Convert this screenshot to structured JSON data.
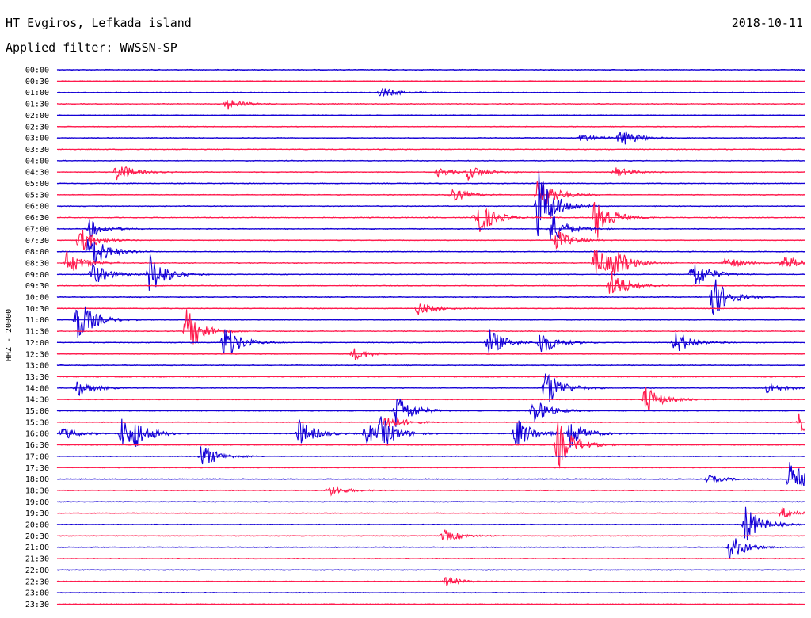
{
  "header": {
    "station": "HT Evgiros, Lefkada island",
    "date": "2018-10-11",
    "filter": "Applied filter: WWSSN-SP"
  },
  "colors": {
    "odd_trace": "#1400d6",
    "even_trace": "#ff1a4d"
  },
  "chart_data": {
    "type": "line",
    "title": "HT Evgiros, Lefkada island",
    "ylabel": "HHZ - 20000",
    "row_labels": [
      "00:00",
      "00:30",
      "01:00",
      "01:30",
      "02:00",
      "02:30",
      "03:00",
      "03:30",
      "04:00",
      "04:30",
      "05:00",
      "05:30",
      "06:00",
      "06:30",
      "07:00",
      "07:30",
      "08:00",
      "08:30",
      "09:00",
      "09:30",
      "10:00",
      "10:30",
      "11:00",
      "11:30",
      "12:00",
      "12:30",
      "13:00",
      "13:30",
      "14:00",
      "14:30",
      "15:00",
      "15:30",
      "16:00",
      "16:30",
      "17:00",
      "17:30",
      "18:00",
      "18:30",
      "19:00",
      "19:30",
      "20:00",
      "20:30",
      "21:00",
      "21:30",
      "22:00",
      "22:30",
      "23:00",
      "23:30"
    ],
    "row_minutes": 30,
    "x_range_minutes": [
      0,
      30
    ],
    "grid": false,
    "events": [
      {
        "row": 2,
        "t": 13.0,
        "amp": 0.5
      },
      {
        "row": 3,
        "t": 6.8,
        "amp": 0.55
      },
      {
        "row": 6,
        "t": 22.6,
        "amp": 0.9
      },
      {
        "row": 6,
        "t": 21.0,
        "amp": 0.4
      },
      {
        "row": 9,
        "t": 2.4,
        "amp": 0.9
      },
      {
        "row": 9,
        "t": 16.5,
        "amp": 0.7
      },
      {
        "row": 9,
        "t": 15.3,
        "amp": 0.4
      },
      {
        "row": 9,
        "t": 22.4,
        "amp": 0.45
      },
      {
        "row": 11,
        "t": 15.8,
        "amp": 0.7
      },
      {
        "row": 11,
        "t": 19.3,
        "amp": 2.0
      },
      {
        "row": 12,
        "t": 19.3,
        "amp": 3.5
      },
      {
        "row": 13,
        "t": 16.8,
        "amp": 2.0
      },
      {
        "row": 13,
        "t": 21.6,
        "amp": 2.2
      },
      {
        "row": 14,
        "t": 1.3,
        "amp": 0.8
      },
      {
        "row": 14,
        "t": 19.8,
        "amp": 1.5
      },
      {
        "row": 15,
        "t": 0.9,
        "amp": 1.2
      },
      {
        "row": 15,
        "t": 20.0,
        "amp": 1.0
      },
      {
        "row": 16,
        "t": 1.3,
        "amp": 2.0
      },
      {
        "row": 17,
        "t": 0.4,
        "amp": 1.2
      },
      {
        "row": 17,
        "t": 21.6,
        "amp": 1.6
      },
      {
        "row": 17,
        "t": 22.4,
        "amp": 1.0
      },
      {
        "row": 17,
        "t": 26.8,
        "amp": 0.6
      },
      {
        "row": 17,
        "t": 29.1,
        "amp": 0.8
      },
      {
        "row": 18,
        "t": 1.4,
        "amp": 1.1
      },
      {
        "row": 18,
        "t": 3.7,
        "amp": 2.0
      },
      {
        "row": 18,
        "t": 25.5,
        "amp": 1.6
      },
      {
        "row": 19,
        "t": 22.2,
        "amp": 1.5
      },
      {
        "row": 20,
        "t": 26.3,
        "amp": 2.0
      },
      {
        "row": 21,
        "t": 14.5,
        "amp": 0.6
      },
      {
        "row": 22,
        "t": 0.8,
        "amp": 2.2
      },
      {
        "row": 23,
        "t": 5.2,
        "amp": 2.1
      },
      {
        "row": 24,
        "t": 6.7,
        "amp": 1.7
      },
      {
        "row": 24,
        "t": 17.3,
        "amp": 1.4
      },
      {
        "row": 24,
        "t": 19.4,
        "amp": 1.2
      },
      {
        "row": 24,
        "t": 24.8,
        "amp": 1.1
      },
      {
        "row": 25,
        "t": 11.9,
        "amp": 0.6
      },
      {
        "row": 28,
        "t": 0.8,
        "amp": 0.8
      },
      {
        "row": 28,
        "t": 19.6,
        "amp": 1.9
      },
      {
        "row": 28,
        "t": 28.5,
        "amp": 0.5
      },
      {
        "row": 29,
        "t": 23.6,
        "amp": 1.3
      },
      {
        "row": 30,
        "t": 13.6,
        "amp": 1.7
      },
      {
        "row": 30,
        "t": 19.1,
        "amp": 1.2
      },
      {
        "row": 31,
        "t": 13.2,
        "amp": 0.8
      },
      {
        "row": 31,
        "t": 29.8,
        "amp": 1.0
      },
      {
        "row": 32,
        "t": 0.2,
        "amp": 0.6
      },
      {
        "row": 32,
        "t": 2.6,
        "amp": 1.4
      },
      {
        "row": 32,
        "t": 3.1,
        "amp": 0.9
      },
      {
        "row": 32,
        "t": 9.7,
        "amp": 1.3
      },
      {
        "row": 32,
        "t": 12.4,
        "amp": 1.0
      },
      {
        "row": 32,
        "t": 13.0,
        "amp": 1.2
      },
      {
        "row": 32,
        "t": 18.4,
        "amp": 1.6
      },
      {
        "row": 32,
        "t": 20.6,
        "amp": 1.2
      },
      {
        "row": 33,
        "t": 20.1,
        "amp": 2.2
      },
      {
        "row": 34,
        "t": 5.8,
        "amp": 1.2
      },
      {
        "row": 36,
        "t": 26.1,
        "amp": 0.4
      },
      {
        "row": 36,
        "t": 29.4,
        "amp": 1.7
      },
      {
        "row": 37,
        "t": 10.9,
        "amp": 0.5
      },
      {
        "row": 39,
        "t": 29.1,
        "amp": 0.5
      },
      {
        "row": 40,
        "t": 27.6,
        "amp": 1.8
      },
      {
        "row": 41,
        "t": 15.5,
        "amp": 0.6
      },
      {
        "row": 42,
        "t": 27.0,
        "amp": 1.2
      },
      {
        "row": 45,
        "t": 15.6,
        "amp": 0.4
      }
    ]
  }
}
